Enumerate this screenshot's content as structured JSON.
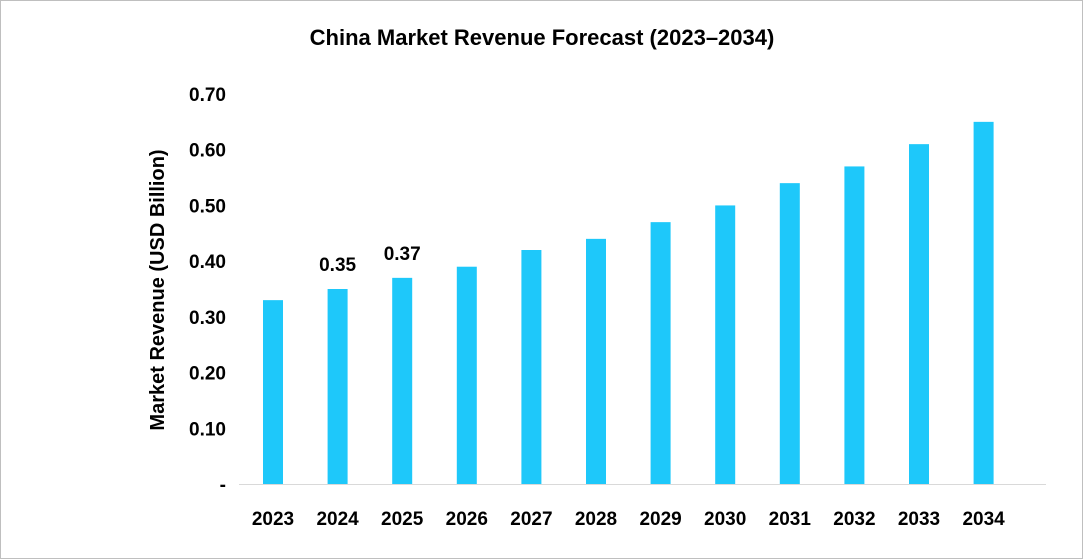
{
  "chart_data": {
    "type": "bar",
    "title": "China Market Revenue Forecast (2023–2034)",
    "xlabel": "",
    "ylabel": "Market Revenue (USD Billion)",
    "categories": [
      "2023",
      "2024",
      "2025",
      "2026",
      "2027",
      "2028",
      "2029",
      "2030",
      "2031",
      "2032",
      "2033",
      "2034"
    ],
    "values": [
      0.33,
      0.35,
      0.37,
      0.39,
      0.42,
      0.44,
      0.47,
      0.5,
      0.54,
      0.57,
      0.61,
      0.65
    ],
    "data_labels": [
      null,
      "0.35",
      "0.37",
      null,
      null,
      null,
      null,
      null,
      null,
      null,
      null,
      null
    ],
    "ylim": [
      0,
      0.7
    ],
    "yticks": [
      0,
      0.1,
      0.2,
      0.3,
      0.4,
      0.5,
      0.6,
      0.7
    ],
    "ytick_labels": [
      "-",
      "0.10",
      "0.20",
      "0.30",
      "0.40",
      "0.50",
      "0.60",
      "0.70"
    ],
    "grid": false,
    "bar_color": "#1ec8fa"
  }
}
